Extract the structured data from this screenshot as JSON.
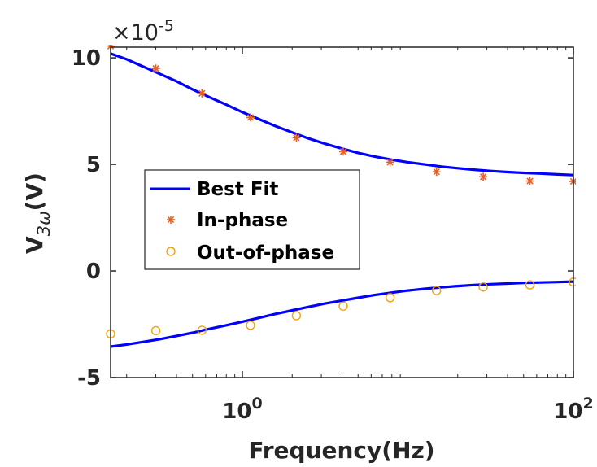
{
  "chart_data": {
    "type": "scatter",
    "xscale": "log",
    "xlim": [
      0.16,
      100
    ],
    "ylim": [
      -5,
      10.5
    ],
    "y_multiplier_label": "×10",
    "y_multiplier_exponent": "-5",
    "xlabel": "Frequency(Hz)",
    "ylabel_main": "V",
    "ylabel_sub": "3ω",
    "ylabel_unit": "(V)",
    "x_ticks": [
      {
        "value": 1,
        "base": "10",
        "exp": "0"
      },
      {
        "value": 100,
        "base": "10",
        "exp": "2"
      }
    ],
    "y_ticks": [
      {
        "value": 10,
        "label": "10"
      },
      {
        "value": 5,
        "label": "5"
      },
      {
        "value": 0,
        "label": "0"
      },
      {
        "value": -5,
        "label": "-5"
      }
    ],
    "grid": false,
    "legend_placement": "center-left",
    "series": [
      {
        "name": "Best Fit",
        "kind": "line",
        "color": "#0000ff",
        "x": [
          0.16,
          0.2,
          0.25,
          0.316,
          0.4,
          0.5,
          0.63,
          0.8,
          1,
          1.26,
          1.58,
          2,
          2.5,
          3.16,
          4,
          5,
          6.3,
          8,
          10,
          12.6,
          15.8,
          20,
          25,
          31.6,
          40,
          50,
          63,
          80,
          100
        ],
        "y": [
          10.2,
          9.93,
          9.6,
          9.25,
          8.9,
          8.52,
          8.16,
          7.8,
          7.45,
          7.12,
          6.8,
          6.5,
          6.22,
          5.97,
          5.74,
          5.54,
          5.37,
          5.22,
          5.1,
          5.0,
          4.9,
          4.82,
          4.75,
          4.69,
          4.64,
          4.6,
          4.57,
          4.53,
          4.5
        ],
        "lower_branch_y": [
          -3.55,
          -3.45,
          -3.33,
          -3.2,
          -3.05,
          -2.9,
          -2.72,
          -2.55,
          -2.38,
          -2.2,
          -2.02,
          -1.85,
          -1.69,
          -1.53,
          -1.39,
          -1.26,
          -1.13,
          -1.02,
          -0.92,
          -0.84,
          -0.77,
          -0.71,
          -0.66,
          -0.62,
          -0.59,
          -0.56,
          -0.54,
          -0.52,
          -0.5
        ]
      },
      {
        "name": "In-phase",
        "kind": "marker",
        "marker": "asterisk",
        "color": "#e4602a",
        "x": [
          0.16,
          0.3,
          0.57,
          1.12,
          2.12,
          4.07,
          7.81,
          14.9,
          28.5,
          54.6,
          100
        ],
        "y": [
          10.55,
          9.5,
          8.33,
          7.2,
          6.25,
          5.6,
          5.1,
          4.65,
          4.42,
          4.22,
          4.2
        ]
      },
      {
        "name": "Out-of-phase",
        "kind": "marker",
        "marker": "circle",
        "color": "#f0a30a",
        "x": [
          0.16,
          0.3,
          0.57,
          1.12,
          2.12,
          4.07,
          7.81,
          14.9,
          28.5,
          54.6,
          100
        ],
        "y": [
          -2.95,
          -2.8,
          -2.78,
          -2.55,
          -2.1,
          -1.65,
          -1.25,
          -0.92,
          -0.75,
          -0.65,
          -0.52
        ]
      }
    ]
  }
}
